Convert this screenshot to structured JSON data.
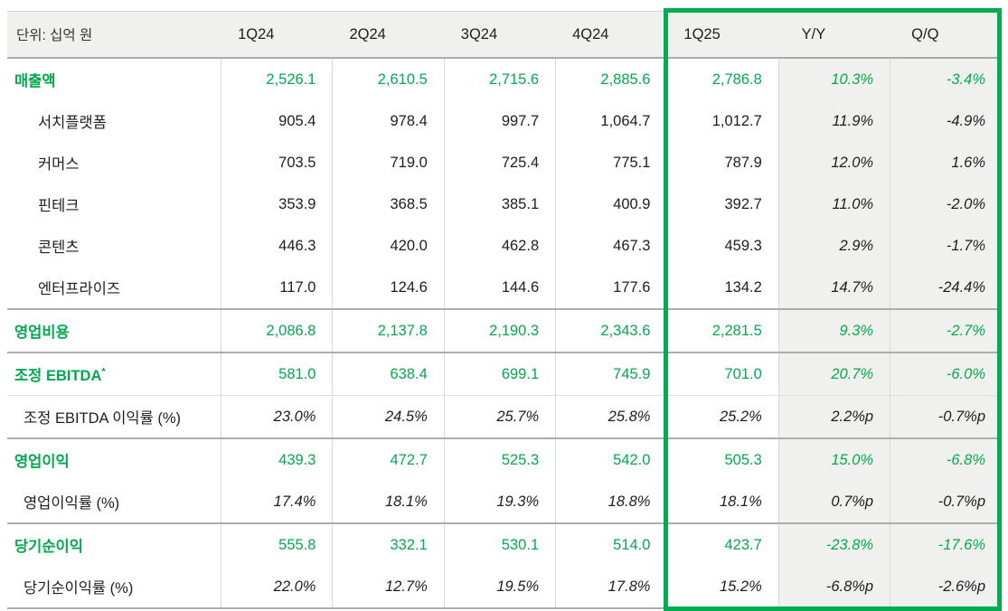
{
  "colors": {
    "green_text": "#04A94F",
    "highlight_border": "#03AC50",
    "header_bg": "#F0F0EF",
    "shaded_column_bg": "#F0F0EF",
    "rule_light": "#D8D8D8",
    "rule_group": "#ADADAD",
    "text_dark": "#1E1E1E"
  },
  "table": {
    "unit_label": "단위: 십억 원",
    "columns": [
      "1Q24",
      "2Q24",
      "3Q24",
      "4Q24",
      "1Q25",
      "Y/Y",
      "Q/Q"
    ],
    "highlighted_columns": [
      "1Q25",
      "Y/Y",
      "Q/Q"
    ],
    "rows": [
      {
        "label": "매출액",
        "type": "primary",
        "sep": "none",
        "values": [
          "2,526.1",
          "2,610.5",
          "2,715.6",
          "2,885.6",
          "2,786.8",
          "10.3%",
          "-3.4%"
        ]
      },
      {
        "label": "서치플랫폼",
        "type": "sub",
        "sep": "none",
        "values": [
          "905.4",
          "978.4",
          "997.7",
          "1,064.7",
          "1,012.7",
          "11.9%",
          "-4.9%"
        ]
      },
      {
        "label": "커머스",
        "type": "sub",
        "sep": "none",
        "values": [
          "703.5",
          "719.0",
          "725.4",
          "775.1",
          "787.9",
          "12.0%",
          "1.6%"
        ]
      },
      {
        "label": "핀테크",
        "type": "sub",
        "sep": "none",
        "values": [
          "353.9",
          "368.5",
          "385.1",
          "400.9",
          "392.7",
          "11.0%",
          "-2.0%"
        ]
      },
      {
        "label": "콘텐츠",
        "type": "sub",
        "sep": "none",
        "values": [
          "446.3",
          "420.0",
          "462.8",
          "467.3",
          "459.3",
          "2.9%",
          "-1.7%"
        ]
      },
      {
        "label": "엔터프라이즈",
        "type": "sub",
        "sep": "none",
        "values": [
          "117.0",
          "124.6",
          "144.6",
          "177.6",
          "134.2",
          "14.7%",
          "-24.4%"
        ]
      },
      {
        "label": "영업비용",
        "type": "primary",
        "sep": "group",
        "values": [
          "2,086.8",
          "2,137.8",
          "2,190.3",
          "2,343.6",
          "2,281.5",
          "9.3%",
          "-2.7%"
        ]
      },
      {
        "label": "조정 EBITDA",
        "label_sup": "*",
        "type": "primary",
        "sep": "group",
        "values": [
          "581.0",
          "638.4",
          "699.1",
          "745.9",
          "701.0",
          "20.7%",
          "-6.0%"
        ]
      },
      {
        "label": "조정 EBITDA 이익률 (%)",
        "type": "margin",
        "sep": "thin",
        "values": [
          "23.0%",
          "24.5%",
          "25.7%",
          "25.8%",
          "25.2%",
          "2.2%p",
          "-0.7%p"
        ]
      },
      {
        "label": "영업이익",
        "type": "primary",
        "sep": "group",
        "values": [
          "439.3",
          "472.7",
          "525.3",
          "542.0",
          "505.3",
          "15.0%",
          "-6.8%"
        ]
      },
      {
        "label": "영업이익률 (%)",
        "type": "margin",
        "sep": "none",
        "values": [
          "17.4%",
          "18.1%",
          "19.3%",
          "18.8%",
          "18.1%",
          "0.7%p",
          "-0.7%p"
        ]
      },
      {
        "label": "당기순이익",
        "type": "primary",
        "sep": "group",
        "values": [
          "555.8",
          "332.1",
          "530.1",
          "514.0",
          "423.7",
          "-23.8%",
          "-17.6%"
        ]
      },
      {
        "label": "당기순이익률 (%)",
        "type": "margin",
        "sep": "none",
        "values": [
          "22.0%",
          "12.7%",
          "19.5%",
          "17.8%",
          "15.2%",
          "-6.8%p",
          "-2.6%p"
        ]
      }
    ]
  }
}
